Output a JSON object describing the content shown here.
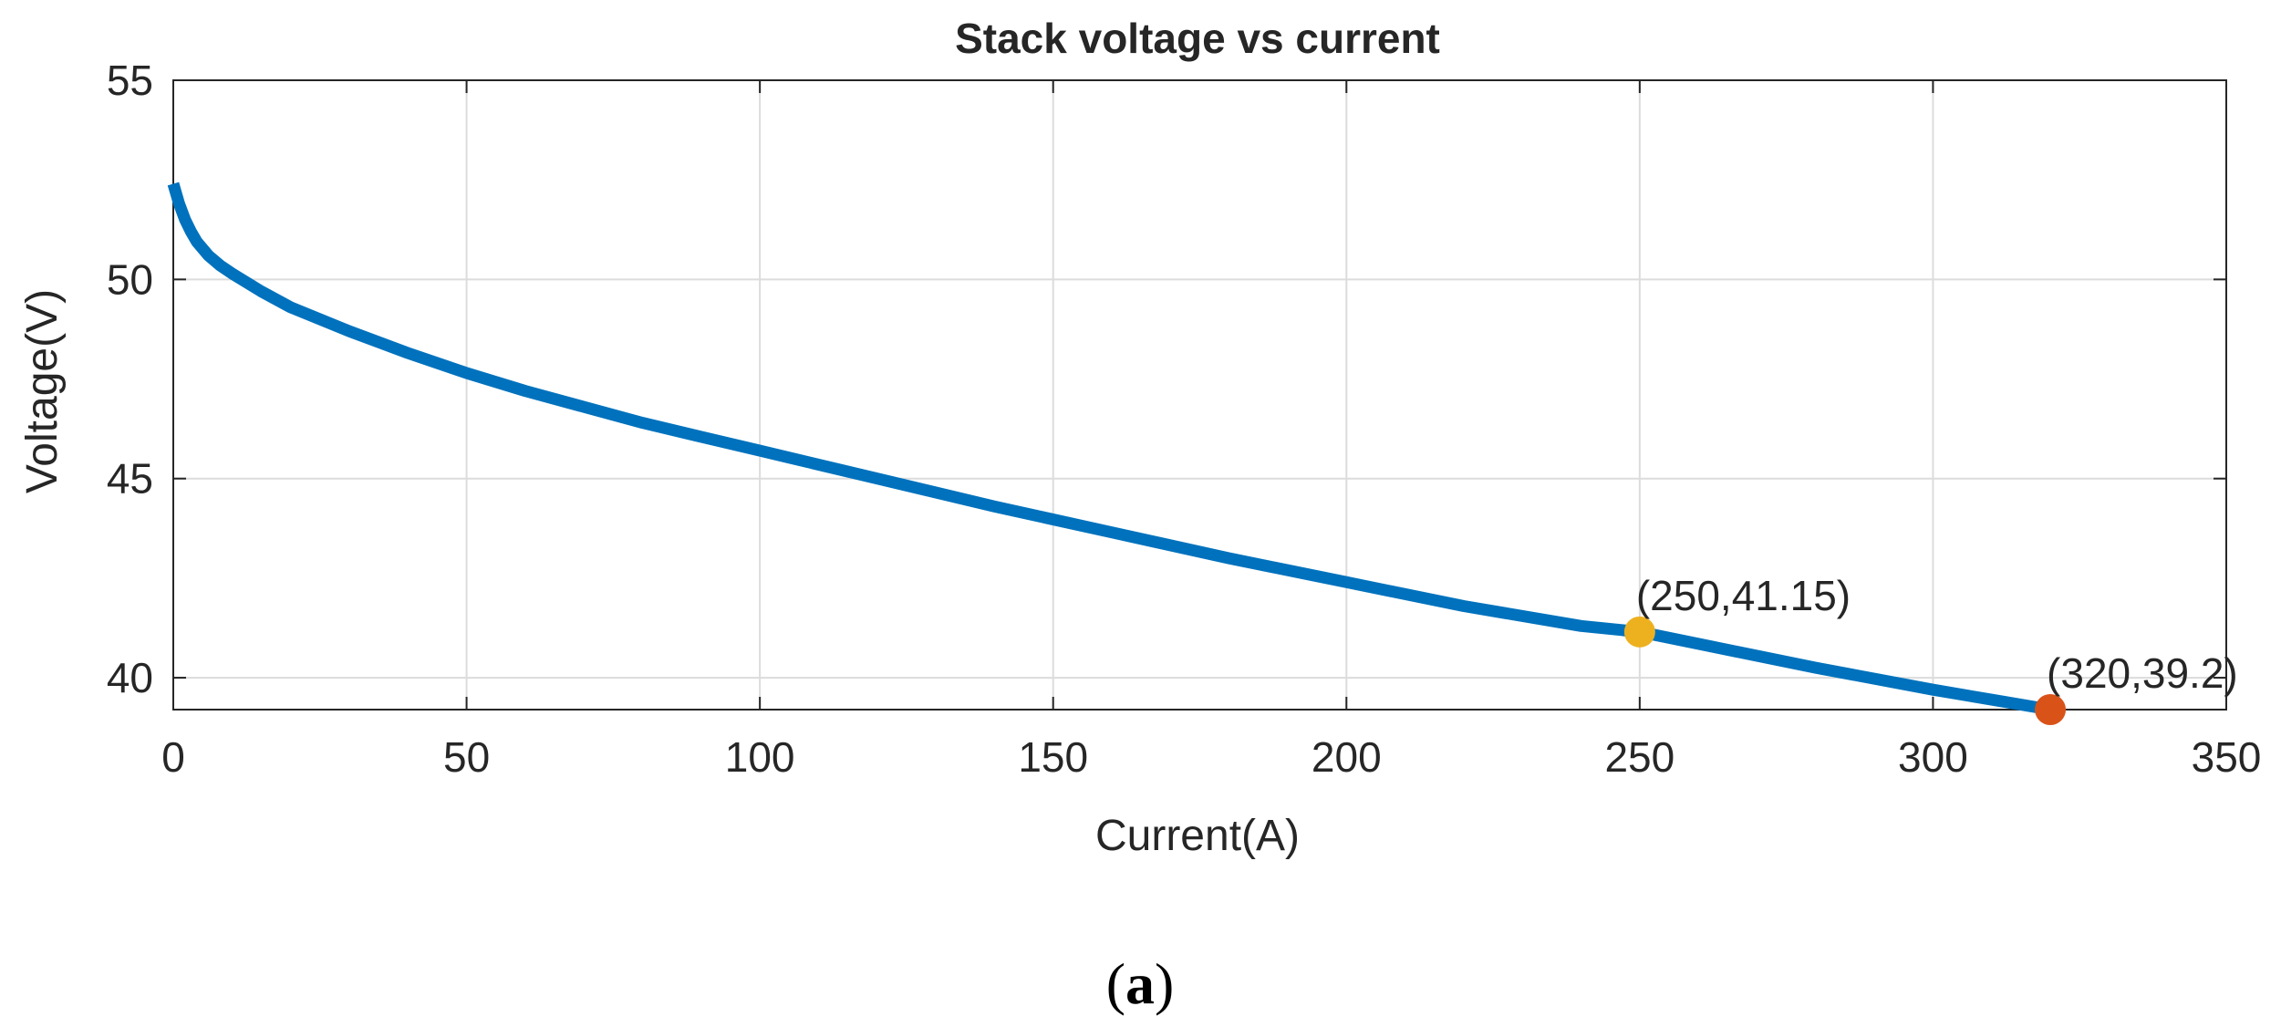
{
  "chart_data": {
    "type": "line",
    "title": "Stack voltage vs current",
    "xlabel": "Current(A)",
    "ylabel": "Voltage(V)",
    "xlim": [
      0,
      350
    ],
    "ylim": [
      39.2,
      55
    ],
    "xticks": [
      0,
      50,
      100,
      150,
      200,
      250,
      300,
      350
    ],
    "yticks": [
      40,
      45,
      50,
      55
    ],
    "grid": true,
    "series": [
      {
        "name": "Stack voltage",
        "color": "#0072BD",
        "x": [
          0,
          1,
          2,
          3,
          4,
          6,
          8,
          10,
          15,
          20,
          30,
          40,
          50,
          60,
          70,
          80,
          90,
          100,
          120,
          140,
          160,
          180,
          200,
          220,
          240,
          250,
          260,
          280,
          300,
          320
        ],
        "y": [
          52.4,
          51.9,
          51.5,
          51.2,
          50.95,
          50.6,
          50.35,
          50.15,
          49.7,
          49.3,
          48.7,
          48.15,
          47.65,
          47.2,
          46.8,
          46.4,
          46.05,
          45.7,
          45.0,
          44.3,
          43.65,
          43.0,
          42.4,
          41.8,
          41.3,
          41.15,
          40.85,
          40.25,
          39.7,
          39.2
        ]
      }
    ],
    "markers": [
      {
        "x": 250,
        "y": 41.15,
        "color": "#EDB120",
        "label": "(250,41.15)"
      },
      {
        "x": 320,
        "y": 39.2,
        "color": "#D95319",
        "label": "(320,39.2)"
      }
    ]
  },
  "caption": {
    "open": "(",
    "letter": "a",
    "close": ")"
  }
}
